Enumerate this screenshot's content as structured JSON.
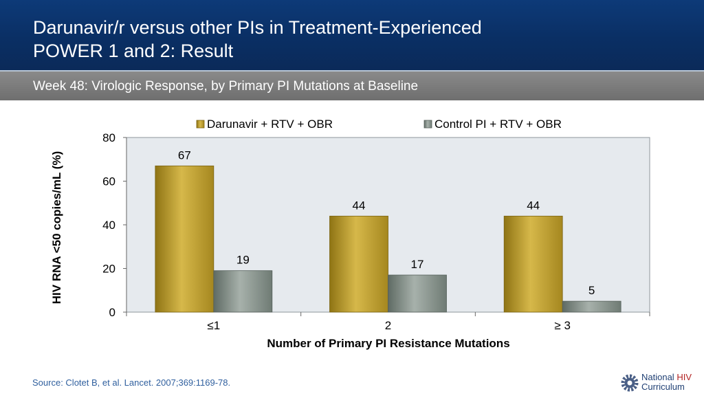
{
  "header": {
    "title_line1": "Darunavir/r versus other PIs in Treatment-Experienced",
    "title_line2": "POWER 1 and 2: Result"
  },
  "subheader": {
    "text": "Week 48: Virologic Response, by Primary PI Mutations at Baseline"
  },
  "chart_data": {
    "type": "bar",
    "categories": [
      "≤1",
      "2",
      "≥ 3"
    ],
    "series": [
      {
        "name": "Darunavir + RTV + OBR",
        "values": [
          67,
          44,
          44
        ],
        "color": "#b89a2c"
      },
      {
        "name": "Control PI + RTV + OBR",
        "values": [
          19,
          17,
          5
        ],
        "color": "#7f8c84"
      }
    ],
    "ylim": [
      0,
      80
    ],
    "yticks": [
      "0",
      "20",
      "40",
      "60",
      "80"
    ],
    "ylabel": "HIV RNA <50 copies/mL (%)",
    "xlabel": "Number of Primary PI Resistance Mutations",
    "legend_position": "top",
    "grid": false,
    "plot_background": "#e6eaee"
  },
  "footer": {
    "source": "Source: Clotet B, et al. Lancet. 2007;369:1169-78."
  },
  "logo": {
    "icon": "gear-icon",
    "word1": "National",
    "word2": "HIV",
    "word3": "Curriculum"
  }
}
